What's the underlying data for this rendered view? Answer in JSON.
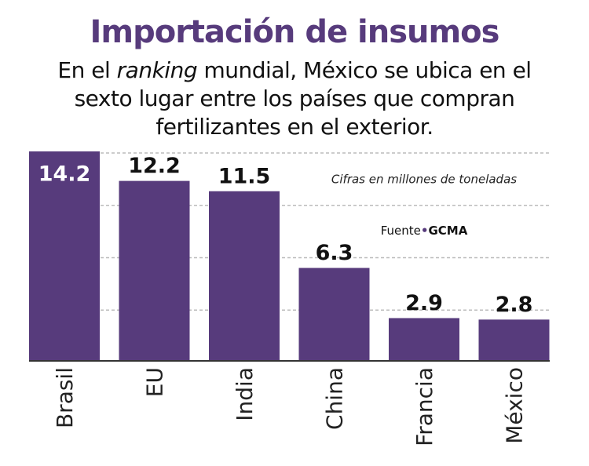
{
  "chart_data": {
    "type": "bar",
    "title": "Importación de insumos",
    "subtitle_parts": [
      "En el",
      "ranking",
      "mundial, México se ubica en el sexto lugar entre los países que compran fertilizantes en el exterior."
    ],
    "note": "Cifras en millones de toneladas",
    "source_label": "Fuente",
    "source": "GCMA",
    "categories": [
      "Brasil",
      "EU",
      "India",
      "China",
      "Francia",
      "México"
    ],
    "values": [
      14.2,
      12.2,
      11.5,
      6.3,
      2.9,
      2.8
    ],
    "color": "#573b7c",
    "ylim": [
      0,
      14.2
    ],
    "yticks": [
      3.55,
      7.1,
      10.65,
      14.2
    ],
    "grid": true
  }
}
